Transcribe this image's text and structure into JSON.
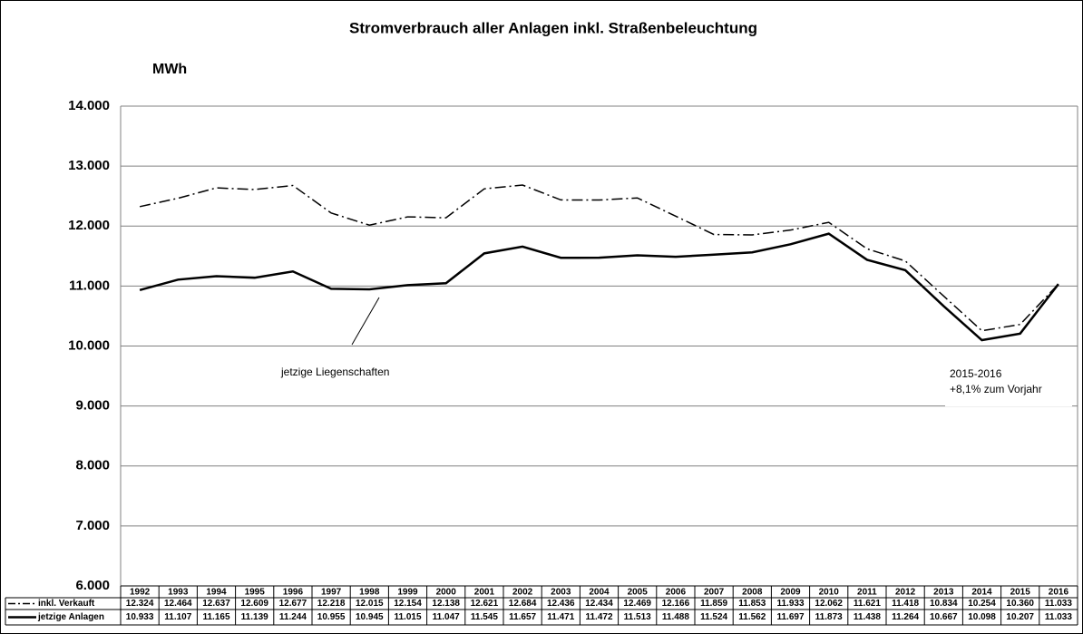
{
  "chart_data": {
    "type": "line",
    "title": "Stromverbrauch aller Anlagen inkl. Straßenbeleuchtung",
    "y_label": "MWh",
    "categories": [
      "1992",
      "1993",
      "1994",
      "1995",
      "1996",
      "1997",
      "1998",
      "1999",
      "2000",
      "2001",
      "2002",
      "2003",
      "2004",
      "2005",
      "2006",
      "2007",
      "2008",
      "2009",
      "2010",
      "2011",
      "2012",
      "2013",
      "2014",
      "2015",
      "2016"
    ],
    "series": [
      {
        "name": "inkl. Verkauft",
        "color": "#000000",
        "dash": "dashdot",
        "values": [
          12324,
          12464,
          12637,
          12609,
          12677,
          12218,
          12015,
          12154,
          12138,
          12621,
          12684,
          12436,
          12434,
          12469,
          12166,
          11859,
          11853,
          11933,
          12062,
          11621,
          11418,
          10834,
          10254,
          10360,
          11033
        ],
        "value_labels": [
          "12.324",
          "12.464",
          "12.637",
          "12.609",
          "12.677",
          "12.218",
          "12.015",
          "12.154",
          "12.138",
          "12.621",
          "12.684",
          "12.436",
          "12.434",
          "12.469",
          "12.166",
          "11.859",
          "11.853",
          "11.933",
          "12.062",
          "11.621",
          "11.418",
          "10.834",
          "10.254",
          "10.360",
          "11.033"
        ]
      },
      {
        "name": "jetzige Anlagen",
        "color": "#000000",
        "dash": "solid",
        "values": [
          10933,
          11107,
          11165,
          11139,
          11244,
          10955,
          10945,
          11015,
          11047,
          11545,
          11657,
          11471,
          11472,
          11513,
          11488,
          11524,
          11562,
          11697,
          11873,
          11438,
          11264,
          10667,
          10098,
          10207,
          11033
        ],
        "value_labels": [
          "10.933",
          "11.107",
          "11.165",
          "11.139",
          "11.244",
          "10.955",
          "10.945",
          "11.015",
          "11.047",
          "11.545",
          "11.657",
          "11.471",
          "11.472",
          "11.513",
          "11.488",
          "11.524",
          "11.562",
          "11.697",
          "11.873",
          "11.438",
          "11.264",
          "10.667",
          "10.098",
          "10.207",
          "11.033"
        ]
      }
    ],
    "ylim": [
      6000,
      14000
    ],
    "yticks": [
      {
        "value": 6000,
        "label": "6.000"
      },
      {
        "value": 7000,
        "label": "7.000"
      },
      {
        "value": 8000,
        "label": "8.000"
      },
      {
        "value": 9000,
        "label": "9.000"
      },
      {
        "value": 10000,
        "label": "10.000"
      },
      {
        "value": 11000,
        "label": "11.000"
      },
      {
        "value": 12000,
        "label": "12.000"
      },
      {
        "value": 13000,
        "label": "13.000"
      },
      {
        "value": 14000,
        "label": "14.000"
      }
    ],
    "grid": true,
    "annotations": [
      "jetzige Liegenschaften",
      "2015-2016",
      "+8,1% zum Vorjahr"
    ]
  }
}
